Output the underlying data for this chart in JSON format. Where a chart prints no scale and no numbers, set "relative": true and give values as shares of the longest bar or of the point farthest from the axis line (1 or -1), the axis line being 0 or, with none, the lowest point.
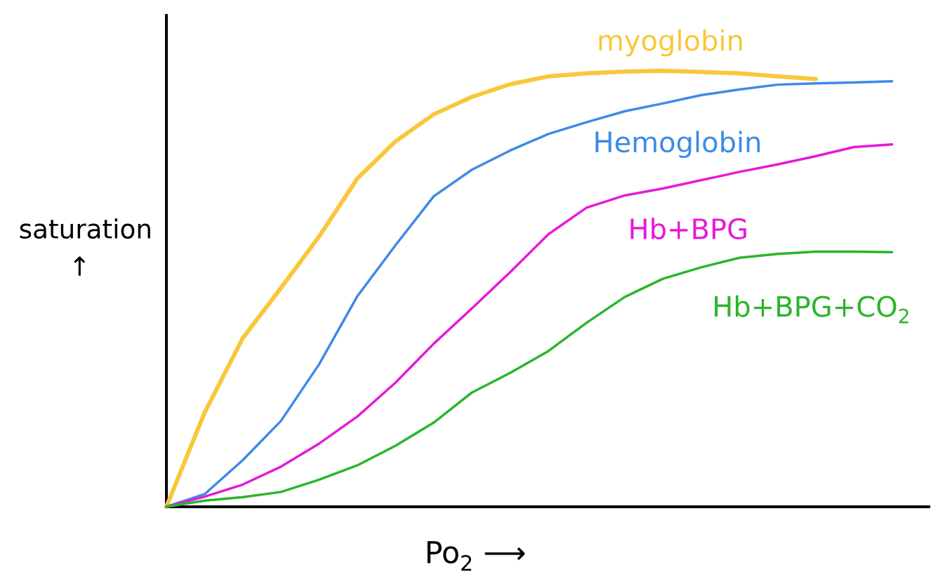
{
  "chart_data": {
    "type": "line",
    "relative": true,
    "xlabel": "Po$_{2}$ ⟶",
    "ylabel": "saturation ↑",
    "categories": [
      null,
      null,
      null,
      null,
      null,
      null,
      null,
      null,
      null,
      null,
      null,
      null,
      null,
      null,
      null,
      null,
      null,
      null,
      null,
      null
    ],
    "series": [
      {
        "name": "myoglobin",
        "color": "#f8c73a",
        "values": [
          0,
          0.216,
          0.387,
          0.502,
          0.62,
          0.753,
          0.838,
          0.9,
          0.94,
          0.969,
          0.987,
          0.994,
          0.998,
          1.0,
          0.997,
          0.994,
          0.987,
          0.981,
          null,
          null
        ]
      },
      {
        "name": "Hemoglobin",
        "color": "#3d8ae6",
        "values": [
          0,
          0.029,
          0.107,
          0.197,
          0.327,
          0.483,
          0.6,
          0.712,
          0.773,
          0.817,
          0.855,
          0.882,
          0.907,
          0.925,
          0.944,
          0.957,
          0.968,
          0.971,
          0.973,
          0.976
        ]
      },
      {
        "name": "Hb+BPG",
        "color": "#e619d9",
        "values": [
          0,
          0.023,
          0.051,
          0.092,
          0.145,
          0.207,
          0.285,
          0.374,
          0.455,
          0.538,
          0.625,
          0.686,
          0.714,
          0.73,
          0.749,
          0.768,
          0.785,
          0.804,
          0.825,
          0.831
        ]
      },
      {
        "name": "Hb+BPG+CO$_{2}$",
        "color": "#2ab52a",
        "values": [
          0,
          0.014,
          0.022,
          0.034,
          0.062,
          0.095,
          0.14,
          0.193,
          0.262,
          0.307,
          0.357,
          0.422,
          0.481,
          0.523,
          0.549,
          0.571,
          0.58,
          0.585,
          0.585,
          0.584
        ]
      }
    ]
  }
}
